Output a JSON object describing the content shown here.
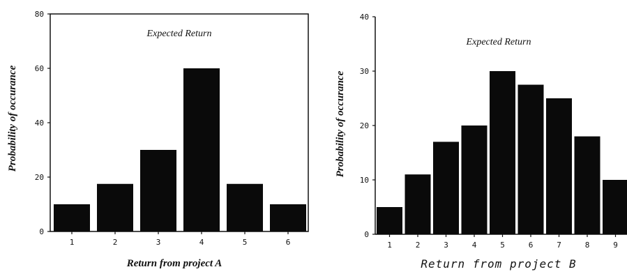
{
  "chart_data": [
    {
      "type": "bar",
      "categories": [
        "1",
        "2",
        "3",
        "4",
        "5",
        "6"
      ],
      "values": [
        10,
        17.5,
        30,
        60,
        17.5,
        10
      ],
      "ylim": [
        0,
        80
      ],
      "yticks": [
        0,
        20,
        40,
        60,
        80
      ],
      "ytick_labels": [
        "0",
        "20",
        "40",
        "60",
        "80"
      ],
      "xtick_labels": [
        "1",
        "2",
        "3",
        "4",
        "5",
        "6"
      ],
      "xlabel": "Return from project A",
      "ylabel": "Probability of occurance",
      "annotation": "Expected Return",
      "bar_color": "#0a0a0a"
    },
    {
      "type": "bar",
      "categories": [
        "1",
        "2",
        "3",
        "4",
        "5",
        "6",
        "7",
        "8",
        "9"
      ],
      "values": [
        5,
        11,
        17,
        20,
        30,
        27.5,
        25,
        18,
        10
      ],
      "ylim": [
        0,
        40
      ],
      "yticks": [
        0,
        10,
        20,
        30,
        40
      ],
      "ytick_labels": [
        "0",
        "10",
        "20",
        "30",
        "40"
      ],
      "xtick_labels": [
        "1",
        "2",
        "3",
        "4",
        "5",
        "6",
        "7",
        "8",
        "9"
      ],
      "xlabel": "Return from project B",
      "ylabel": "Probability of occurance",
      "annotation": "Expected Return",
      "bar_color": "#0a0a0a"
    }
  ]
}
